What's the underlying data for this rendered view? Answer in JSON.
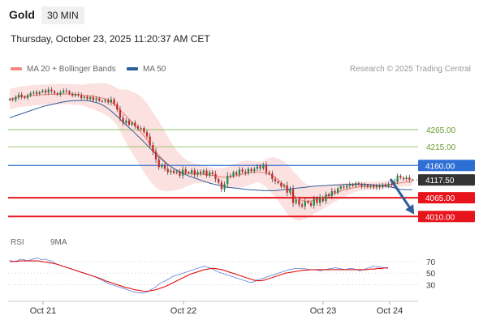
{
  "header": {
    "instrument": "Gold",
    "timeframe": "30 MIN",
    "datetime": "Thursday, October 23, 2025 11:20:37 AM CET"
  },
  "legend": {
    "bollinger": {
      "label": "MA 20 + Bollinger Bands",
      "color": "#f28b82"
    },
    "ma50": {
      "label": "MA 50",
      "color": "#2f5f98"
    },
    "credit": "Research © 2025 Trading Central"
  },
  "rsi_legend": {
    "rsi": {
      "label": "RSI",
      "color": "#5b7fd6"
    },
    "ma9": {
      "label": "9MA",
      "color": "#e01010"
    }
  },
  "chart_data": [
    {
      "type": "candlestick",
      "title": "",
      "x_labels": [
        "Oct 21",
        "Oct 22",
        "Oct 23",
        "Oct 24"
      ],
      "ylim": [
        3975,
        4420
      ],
      "current_price": 4117.5,
      "resistance_levels": [
        {
          "label": "4265.00",
          "value": 4265.0,
          "color": "#8fbf5a"
        },
        {
          "label": "4215.00",
          "value": 4215.0,
          "color": "#8fbf5a"
        },
        {
          "label": "4160.00",
          "value": 4160.0,
          "color": "#2e6fd6"
        }
      ],
      "support_levels": [
        {
          "label": "4065.00",
          "value": 4065.0,
          "color": "#e8141c"
        },
        {
          "label": "4010.00",
          "value": 4010.0,
          "color": "#e8141c"
        }
      ],
      "current_label": "4117.50",
      "arrow": {
        "direction": "down",
        "from": 4117.5,
        "to": 4010.0,
        "color": "#2f5f98"
      },
      "close": [
        4355,
        4352,
        4360,
        4368,
        4362,
        4358,
        4366,
        4372,
        4375,
        4370,
        4376,
        4380,
        4374,
        4383,
        4378,
        4372,
        4368,
        4375,
        4380,
        4378,
        4371,
        4365,
        4370,
        4366,
        4358,
        4362,
        4355,
        4360,
        4352,
        4357,
        4350,
        4348,
        4352,
        4345,
        4354,
        4340,
        4324,
        4300,
        4285,
        4292,
        4280,
        4286,
        4275,
        4268,
        4270,
        4258,
        4245,
        4220,
        4200,
        4178,
        4155,
        4162,
        4150,
        4140,
        4145,
        4138,
        4142,
        4130,
        4148,
        4140,
        4136,
        4146,
        4132,
        4141,
        4136,
        4145,
        4130,
        4140,
        4135,
        4120,
        4110,
        4090,
        4105,
        4130,
        4128,
        4140,
        4133,
        4148,
        4142,
        4137,
        4150,
        4143,
        4150,
        4157,
        4151,
        4163,
        4140,
        4136,
        4120,
        4113,
        4108,
        4098,
        4102,
        4080,
        4090,
        4050,
        4060,
        4045,
        4040,
        4055,
        4050,
        4042,
        4062,
        4050,
        4066,
        4055,
        4075,
        4070,
        4085,
        4080,
        4092,
        4098,
        4095,
        4100,
        4105,
        4100,
        4108,
        4104,
        4098,
        4102,
        4096,
        4100,
        4095,
        4100,
        4096,
        4104,
        4100,
        4106,
        4102,
        4112,
        4130,
        4124,
        4120,
        4125,
        4118,
        4117.5
      ],
      "ma20": [
        4355,
        4357,
        4359,
        4361,
        4362,
        4363,
        4364,
        4365,
        4366,
        4367,
        4367,
        4368,
        4368,
        4369,
        4369,
        4369,
        4369,
        4370,
        4370,
        4370,
        4369,
        4369,
        4368,
        4368,
        4367,
        4366,
        4365,
        4364,
        4363,
        4361,
        4360,
        4358,
        4356,
        4352,
        4347,
        4340,
        4332,
        4323,
        4314,
        4305,
        4296,
        4287,
        4278,
        4269,
        4258,
        4247,
        4235,
        4222,
        4210,
        4199,
        4190,
        4181,
        4172,
        4164,
        4157,
        4151,
        4146,
        4142,
        4139,
        4138,
        4137,
        4137,
        4137,
        4136,
        4135,
        4134,
        4133,
        4132,
        4131,
        4130,
        4128,
        4126,
        4125,
        4126,
        4127,
        4128,
        4130,
        4132,
        4134,
        4136,
        4138,
        4139,
        4140,
        4141,
        4140,
        4139,
        4137,
        4134,
        4130,
        4125,
        4118,
        4110,
        4101,
        4092,
        4083,
        4074,
        4067,
        4061,
        4057,
        4055,
        4055,
        4056,
        4058,
        4060,
        4063,
        4066,
        4070,
        4073,
        4076,
        4079,
        4082,
        4085,
        4088,
        4090,
        4092,
        4094,
        4096,
        4097,
        4098,
        4099,
        4100,
        4100,
        4100,
        4101,
        4101,
        4102,
        4103,
        4104,
        4105,
        4106,
        4108,
        4109,
        4110,
        4111,
        4111,
        4112
      ],
      "ma50": [
        4300,
        4303,
        4306,
        4309,
        4312,
        4315,
        4318,
        4321,
        4324,
        4327,
        4330,
        4333,
        4335,
        4337,
        4339,
        4341,
        4343,
        4345,
        4347,
        4348,
        4349,
        4350,
        4350,
        4351,
        4351,
        4351,
        4350,
        4349,
        4347,
        4345,
        4342,
        4338,
        4333,
        4327,
        4320,
        4312,
        4304,
        4296,
        4287,
        4279,
        4271,
        4263,
        4255,
        4246,
        4238,
        4229,
        4220,
        4211,
        4202,
        4193,
        4185,
        4177,
        4170,
        4163,
        4157,
        4151,
        4146,
        4141,
        4137,
        4133,
        4129,
        4126,
        4123,
        4120,
        4117,
        4114,
        4111,
        4108,
        4106,
        4104,
        4102,
        4100,
        4098,
        4096,
        4095,
        4094,
        4093,
        4092,
        4091,
        4090,
        4089,
        4088,
        4088,
        4087,
        4087,
        4086,
        4086,
        4086,
        4086,
        4086,
        4087,
        4088,
        4089,
        4090,
        4091,
        4092,
        4093,
        4094,
        4095,
        4096,
        4097,
        4098,
        4099,
        4100,
        4100,
        4101,
        4101,
        4102,
        4102,
        4103,
        4103,
        4103,
        4104,
        4104,
        4104,
        4105,
        4105,
        4105,
        4105,
        4105,
        4104,
        4104,
        4103,
        4102,
        4101,
        4100,
        4099,
        4098,
        4096,
        4094,
        4092,
        4090,
        4089,
        4089,
        4089,
        4088
      ],
      "bb_width": [
        30,
        30,
        30,
        30,
        30,
        30,
        30,
        30,
        30,
        30,
        30,
        30,
        30,
        30,
        30,
        30,
        30,
        30,
        30,
        30,
        30,
        30,
        30,
        30,
        30,
        32,
        34,
        36,
        38,
        40,
        42,
        44,
        46,
        48,
        50,
        52,
        55,
        60,
        70,
        78,
        85,
        90,
        95,
        100,
        104,
        107,
        108,
        108,
        106,
        104,
        100,
        95,
        88,
        80,
        72,
        64,
        58,
        52,
        46,
        40,
        36,
        32,
        30,
        28,
        26,
        25,
        24,
        23,
        22,
        22,
        24,
        26,
        28,
        30,
        32,
        34,
        36,
        38,
        38,
        38,
        36,
        34,
        32,
        30,
        32,
        36,
        42,
        48,
        54,
        58,
        62,
        66,
        70,
        74,
        72,
        70,
        68,
        64,
        58,
        52,
        48,
        44,
        40,
        38,
        36,
        34,
        32,
        30,
        28,
        26,
        24,
        22,
        20,
        18,
        16,
        15,
        14,
        13,
        12,
        12,
        12,
        12,
        12,
        12,
        12,
        12,
        12,
        12,
        12,
        12,
        12,
        12,
        12,
        12,
        12,
        12
      ]
    },
    {
      "type": "line",
      "title": "RSI",
      "ylim": [
        10,
        85
      ],
      "y_ticks": [
        {
          "label": "70",
          "value": 70
        },
        {
          "label": "50",
          "value": 50
        },
        {
          "label": "30",
          "value": 30
        }
      ],
      "series": [
        {
          "name": "RSI",
          "color": "#5b7fd6",
          "values": [
            72,
            70,
            71,
            74,
            73,
            71,
            73,
            75,
            76,
            73,
            74,
            72,
            70,
            66,
            64,
            62,
            60,
            58,
            56,
            54,
            52,
            50,
            48,
            46,
            44,
            41,
            38,
            35,
            32,
            30,
            28,
            26,
            24,
            22,
            20,
            18,
            17,
            16,
            16,
            18,
            22,
            25,
            30,
            34,
            37,
            40,
            44,
            46,
            48,
            50,
            52,
            54,
            56,
            58,
            60,
            62,
            60,
            58,
            55,
            52,
            50,
            48,
            46,
            44,
            42,
            40,
            38,
            36,
            34,
            35,
            38,
            40,
            42,
            44,
            46,
            48,
            50,
            52,
            54,
            56,
            57,
            58,
            58,
            58,
            57,
            56,
            56,
            55,
            54,
            56,
            57,
            58,
            59,
            58,
            57,
            56,
            58,
            58,
            56,
            54,
            56,
            58,
            60,
            62,
            61,
            60,
            59,
            58
          ]
        },
        {
          "name": "9MA",
          "color": "#e01010",
          "values": [
            70,
            70,
            70,
            71,
            71,
            71,
            71,
            71,
            71,
            70,
            69,
            68,
            67,
            66,
            64,
            62,
            60,
            58,
            56,
            54,
            52,
            50,
            48,
            46,
            44,
            42,
            40,
            37,
            35,
            33,
            31,
            29,
            27,
            25,
            24,
            22,
            21,
            20,
            19,
            19,
            20,
            21,
            23,
            25,
            27,
            30,
            33,
            36,
            39,
            42,
            45,
            48,
            50,
            52,
            54,
            56,
            57,
            58,
            58,
            57,
            56,
            54,
            52,
            50,
            48,
            46,
            44,
            42,
            40,
            38,
            37,
            37,
            38,
            40,
            42,
            44,
            46,
            48,
            50,
            51,
            52,
            53,
            54,
            55,
            55,
            56,
            56,
            56,
            56,
            56,
            56,
            56,
            56,
            56,
            56,
            56,
            56,
            56,
            56,
            56,
            56,
            56,
            57,
            57,
            58,
            58,
            59,
            59
          ]
        }
      ]
    }
  ]
}
